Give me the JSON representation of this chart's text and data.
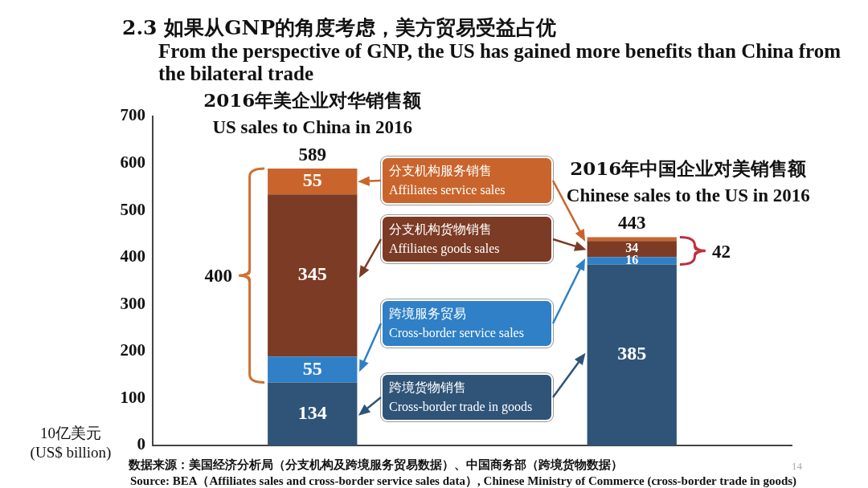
{
  "chart_data": {
    "type": "bar",
    "stacked": true,
    "title": "2.3 如果从GNP的角度考虑，美方贸易受益占优",
    "subtitle": "From the perspective of GNP, the US has gained more benefits than China from the bilateral trade",
    "ylabel": "10亿美元\n(US$ billion)",
    "categories": [
      "2016年美企业对华销售额\nUS sales to China in 2016",
      "2016年中国企业对美销售额\nChinese sales to the US in 2016"
    ],
    "series": [
      {
        "name": "跨境货物销售\nCross-border trade in goods",
        "color": "#2f5478",
        "values": [
          134,
          385
        ],
        "value_labels": [
          "134",
          "385"
        ]
      },
      {
        "name": "跨境服务贸易\nCross-border service sales",
        "color": "#2f80c6",
        "values": [
          55,
          16
        ],
        "value_labels": [
          "55",
          "16"
        ]
      },
      {
        "name": "分支机构货物销售\nAffiliates goods sales",
        "color": "#7c3b25",
        "values": [
          345,
          34
        ],
        "value_labels": [
          "345",
          "34"
        ]
      },
      {
        "name": "分支机构服务销售\nAffiliates service sales",
        "color": "#c9652c",
        "values": [
          55,
          8
        ],
        "value_labels": [
          "55",
          null
        ]
      }
    ],
    "totals": [
      "589",
      "443"
    ],
    "ylim": [
      0,
      700
    ],
    "yticks": [
      0,
      100,
      200,
      300,
      400,
      500,
      600,
      700
    ],
    "grid": false,
    "legend": "center",
    "annotations": [
      "400",
      "42",
      "数据来源：美国经济分析局（分支机构及跨境服务贸易数据）、中国商务部（跨境货物数据）",
      "Source:  BEA（Affiliates sales and cross-border service sales data）, Chinese Ministry of Commerce (cross-border trade in goods)",
      "14"
    ]
  }
}
